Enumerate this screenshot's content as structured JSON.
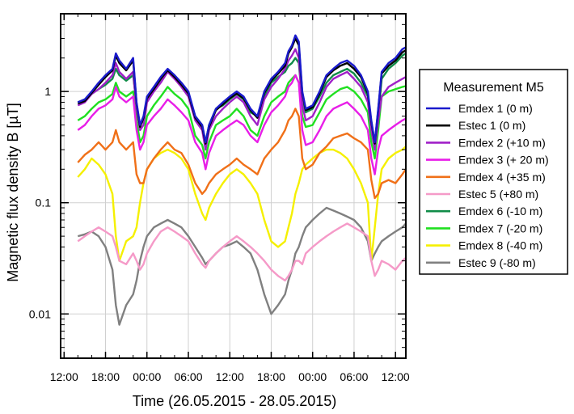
{
  "chart_data": {
    "type": "line",
    "title": "",
    "xlabel": "Time (26.05.2015 - 28.05.2015)",
    "ylabel": "Magnetic flux density B [µT]",
    "yscale": "log",
    "ylim": [
      0.004,
      5
    ],
    "y_ticks": [
      0.01,
      0.1,
      1
    ],
    "y_tick_labels": [
      "0.01",
      "0.1",
      "1"
    ],
    "xlim": [
      11.5,
      61.5
    ],
    "x_unit": "hours since 26.05.2015 00:00",
    "x_ticks": [
      12,
      18,
      24,
      30,
      36,
      42,
      48,
      54,
      60
    ],
    "x_tick_labels": [
      "12:00",
      "18:00",
      "00:00",
      "06:00",
      "12:00",
      "18:00",
      "00:00",
      "06:00",
      "12:00"
    ],
    "grid": true,
    "legend": {
      "title": "Measurement M5",
      "position": "right"
    },
    "x": [
      14,
      15,
      16,
      17,
      18,
      19,
      19.5,
      20,
      21,
      22,
      22.5,
      23,
      23.5,
      24,
      25,
      26,
      27,
      28,
      29,
      30,
      31,
      32,
      32.5,
      33,
      34,
      35,
      36,
      37,
      38,
      39,
      40,
      41,
      42,
      43,
      44,
      44.5,
      45,
      45.5,
      46,
      46.5,
      47,
      48,
      49,
      50,
      51,
      52,
      53,
      54,
      55,
      56,
      56.5,
      57,
      57.5,
      58,
      59,
      60,
      61,
      61.5
    ],
    "series": [
      {
        "name": "Emdex 1 (0 m)",
        "color": "#1a1acc",
        "values": [
          0.8,
          0.85,
          1.0,
          1.2,
          1.4,
          1.6,
          2.2,
          1.9,
          1.6,
          2.0,
          0.8,
          0.5,
          0.6,
          0.9,
          1.1,
          1.35,
          1.6,
          1.4,
          1.2,
          1.0,
          0.6,
          0.5,
          0.35,
          0.5,
          0.7,
          0.8,
          0.9,
          1.0,
          0.9,
          0.7,
          0.6,
          1.0,
          1.3,
          1.5,
          1.8,
          2.3,
          2.6,
          3.2,
          2.8,
          1.0,
          0.7,
          0.75,
          1.0,
          1.4,
          1.6,
          1.8,
          1.9,
          1.7,
          1.4,
          1.0,
          0.55,
          0.35,
          0.7,
          1.5,
          1.8,
          2.0,
          2.4,
          2.5
        ]
      },
      {
        "name": "Estec 1 (0 m)",
        "color": "#000000",
        "values": [
          0.78,
          0.82,
          0.97,
          1.15,
          1.35,
          1.55,
          2.1,
          1.8,
          1.55,
          1.9,
          0.78,
          0.48,
          0.58,
          0.87,
          1.05,
          1.3,
          1.55,
          1.35,
          1.15,
          0.96,
          0.58,
          0.48,
          0.34,
          0.48,
          0.68,
          0.77,
          0.87,
          0.96,
          0.87,
          0.68,
          0.58,
          0.97,
          1.25,
          1.45,
          1.7,
          2.2,
          2.5,
          3.0,
          2.6,
          0.97,
          0.68,
          0.72,
          0.96,
          1.35,
          1.55,
          1.7,
          1.8,
          1.6,
          1.35,
          0.96,
          0.53,
          0.34,
          0.68,
          1.45,
          1.7,
          1.9,
          2.25,
          2.35
        ]
      },
      {
        "name": "Emdex 2 (+10 m)",
        "color": "#a020c8",
        "values": [
          0.75,
          0.8,
          0.95,
          1.05,
          1.2,
          1.4,
          1.8,
          1.5,
          1.3,
          1.5,
          0.7,
          0.45,
          0.5,
          0.8,
          1.0,
          1.2,
          1.5,
          1.3,
          1.1,
          0.9,
          0.55,
          0.45,
          0.3,
          0.45,
          0.6,
          0.7,
          0.8,
          0.9,
          0.8,
          0.6,
          0.5,
          0.85,
          1.1,
          1.3,
          1.6,
          1.9,
          2.1,
          2.4,
          2.0,
          0.75,
          0.55,
          0.6,
          0.8,
          1.1,
          1.3,
          1.4,
          1.5,
          1.3,
          1.1,
          0.8,
          0.45,
          0.3,
          0.55,
          0.9,
          1.1,
          1.2,
          1.3,
          1.35
        ]
      },
      {
        "name": "Emdex 3 (+ 20 m)",
        "color": "#e81ee8",
        "values": [
          0.45,
          0.5,
          0.6,
          0.7,
          0.75,
          0.85,
          1.1,
          0.9,
          0.8,
          0.9,
          0.45,
          0.3,
          0.35,
          0.5,
          0.6,
          0.7,
          0.85,
          0.75,
          0.65,
          0.55,
          0.35,
          0.28,
          0.2,
          0.28,
          0.4,
          0.45,
          0.5,
          0.55,
          0.5,
          0.4,
          0.35,
          0.5,
          0.65,
          0.75,
          0.9,
          1.1,
          1.2,
          1.4,
          1.2,
          0.45,
          0.33,
          0.35,
          0.45,
          0.6,
          0.7,
          0.75,
          0.8,
          0.7,
          0.6,
          0.45,
          0.25,
          0.18,
          0.3,
          0.4,
          0.45,
          0.5,
          0.55,
          0.57
        ]
      },
      {
        "name": "Emdex 4 (+35 m)",
        "color": "#f07018",
        "values": [
          0.23,
          0.27,
          0.3,
          0.35,
          0.3,
          0.35,
          0.45,
          0.35,
          0.3,
          0.35,
          0.18,
          0.15,
          0.15,
          0.2,
          0.25,
          0.3,
          0.35,
          0.3,
          0.28,
          0.22,
          0.15,
          0.12,
          0.13,
          0.15,
          0.18,
          0.2,
          0.22,
          0.25,
          0.22,
          0.2,
          0.18,
          0.25,
          0.3,
          0.35,
          0.45,
          0.55,
          0.6,
          0.7,
          0.6,
          0.25,
          0.2,
          0.22,
          0.28,
          0.32,
          0.38,
          0.4,
          0.42,
          0.38,
          0.35,
          0.3,
          0.16,
          0.11,
          0.12,
          0.15,
          0.16,
          0.15,
          0.18,
          0.2
        ]
      },
      {
        "name": "Estec 5 (+80 m)",
        "color": "#f59ac8",
        "values": [
          0.045,
          0.05,
          0.055,
          0.06,
          0.055,
          0.05,
          0.04,
          0.03,
          0.028,
          0.035,
          0.03,
          0.025,
          0.028,
          0.035,
          0.045,
          0.055,
          0.06,
          0.055,
          0.05,
          0.045,
          0.035,
          0.028,
          0.026,
          0.03,
          0.035,
          0.04,
          0.045,
          0.05,
          0.045,
          0.04,
          0.035,
          0.03,
          0.025,
          0.022,
          0.02,
          0.022,
          0.025,
          0.03,
          0.03,
          0.028,
          0.035,
          0.04,
          0.045,
          0.05,
          0.055,
          0.06,
          0.065,
          0.06,
          0.055,
          0.05,
          0.03,
          0.022,
          0.025,
          0.03,
          0.028,
          0.025,
          0.03,
          0.032
        ]
      },
      {
        "name": "Emdex 6 (-10 m)",
        "color": "#108c48",
        "values": [
          0.8,
          0.85,
          0.95,
          1.05,
          1.15,
          1.3,
          1.6,
          1.4,
          1.25,
          1.4,
          0.75,
          0.5,
          0.55,
          0.85,
          1.0,
          1.25,
          1.5,
          1.35,
          1.15,
          0.95,
          0.6,
          0.5,
          0.35,
          0.5,
          0.7,
          0.75,
          0.85,
          0.95,
          0.85,
          0.65,
          0.6,
          0.9,
          1.2,
          1.35,
          1.5,
          1.7,
          1.8,
          2.0,
          1.8,
          0.8,
          0.65,
          0.7,
          0.9,
          1.2,
          1.4,
          1.5,
          1.6,
          1.45,
          1.2,
          0.9,
          0.5,
          0.35,
          0.6,
          1.3,
          1.6,
          1.8,
          2.1,
          2.2
        ]
      },
      {
        "name": "Emdex 7 (-20 m)",
        "color": "#20e020",
        "values": [
          0.55,
          0.6,
          0.7,
          0.8,
          0.85,
          0.95,
          1.2,
          1.0,
          0.9,
          1.0,
          0.55,
          0.35,
          0.4,
          0.6,
          0.75,
          0.9,
          1.1,
          0.95,
          0.85,
          0.7,
          0.4,
          0.33,
          0.25,
          0.35,
          0.5,
          0.55,
          0.6,
          0.7,
          0.6,
          0.45,
          0.4,
          0.6,
          0.8,
          0.9,
          1.0,
          1.2,
          1.3,
          1.4,
          1.2,
          0.6,
          0.48,
          0.5,
          0.65,
          0.85,
          0.95,
          1.05,
          1.1,
          1.0,
          0.85,
          0.65,
          0.35,
          0.25,
          0.45,
          0.9,
          1.0,
          1.05,
          1.1,
          1.12
        ]
      },
      {
        "name": "Emdex 8 (-40 m)",
        "color": "#f5f000",
        "values": [
          0.17,
          0.2,
          0.25,
          0.22,
          0.18,
          0.12,
          0.05,
          0.03,
          0.045,
          0.05,
          0.06,
          0.1,
          0.15,
          0.2,
          0.25,
          0.28,
          0.3,
          0.28,
          0.25,
          0.2,
          0.12,
          0.08,
          0.07,
          0.09,
          0.12,
          0.15,
          0.18,
          0.2,
          0.18,
          0.15,
          0.12,
          0.07,
          0.045,
          0.04,
          0.045,
          0.06,
          0.08,
          0.12,
          0.15,
          0.2,
          0.22,
          0.25,
          0.28,
          0.3,
          0.3,
          0.28,
          0.25,
          0.2,
          0.15,
          0.1,
          0.03,
          0.06,
          0.12,
          0.2,
          0.25,
          0.28,
          0.3,
          0.32
        ]
      },
      {
        "name": "Estec 9 (-80 m)",
        "color": "#808080",
        "values": [
          0.05,
          0.052,
          0.055,
          0.05,
          0.04,
          0.025,
          0.012,
          0.008,
          0.012,
          0.015,
          0.02,
          0.03,
          0.04,
          0.05,
          0.06,
          0.065,
          0.07,
          0.065,
          0.06,
          0.05,
          0.04,
          0.032,
          0.028,
          0.03,
          0.035,
          0.04,
          0.042,
          0.045,
          0.04,
          0.035,
          0.025,
          0.015,
          0.01,
          0.012,
          0.015,
          0.02,
          0.025,
          0.035,
          0.04,
          0.05,
          0.06,
          0.07,
          0.08,
          0.09,
          0.085,
          0.08,
          0.075,
          0.07,
          0.06,
          0.045,
          0.03,
          0.035,
          0.04,
          0.045,
          0.05,
          0.055,
          0.06,
          0.065
        ]
      }
    ]
  }
}
